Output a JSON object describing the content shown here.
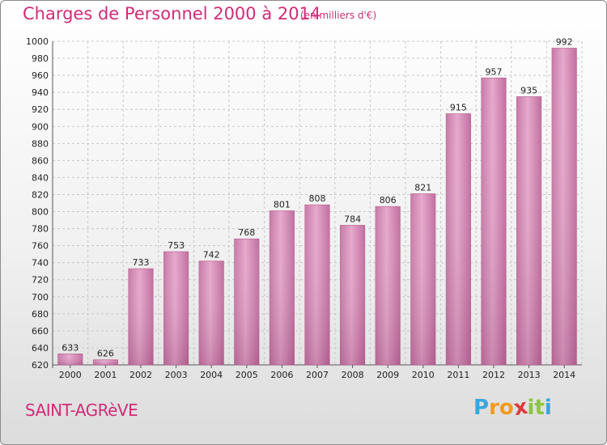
{
  "chart_data": {
    "type": "bar",
    "title": "Charges de Personnel 2000 à 2014",
    "subtitle": "(en milliers d'€)",
    "categories": [
      "2000",
      "2001",
      "2002",
      "2003",
      "2004",
      "2005",
      "2006",
      "2007",
      "2008",
      "2009",
      "2010",
      "2011",
      "2012",
      "2013",
      "2014"
    ],
    "values": [
      633,
      626,
      733,
      753,
      742,
      768,
      801,
      808,
      784,
      806,
      821,
      915,
      957,
      935,
      992
    ],
    "ylim": [
      620,
      1000
    ],
    "yticks": [
      620,
      640,
      660,
      680,
      700,
      720,
      740,
      760,
      780,
      800,
      820,
      840,
      860,
      880,
      900,
      920,
      940,
      960,
      980,
      1000
    ],
    "grid": true,
    "bar_color": "#d687b5"
  },
  "commune": "SAINT-AGRèVE",
  "logo": {
    "letters": [
      "P",
      "r",
      "o",
      "x",
      "i",
      "t",
      "i"
    ],
    "colors": [
      "#3aa6dd",
      "#f39a1f",
      "#f39a1f",
      "#e03a3a",
      "#8cc63f",
      "#8cc63f",
      "#3aa6dd"
    ]
  }
}
